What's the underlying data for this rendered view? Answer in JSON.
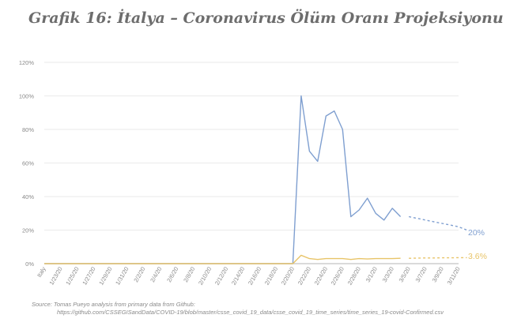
{
  "title": "Grafik 16: İtalya – Coronavirus Ölüm Oranı Projeksiyonu",
  "source": {
    "line1": "Source: Tomas Pueyo analysis from primary data from Github:",
    "line2": "https://github.com/CSSEGISandData/COVID-19/blob/master/csse_covid_19_data/csse_covid_19_time_series/time_series_19-covid-Confirmed.csv"
  },
  "colors": {
    "blue": "#7f9fd0",
    "yellow": "#e8c468",
    "grid": "#e3e3e3",
    "axis": "#b5b5b5",
    "tick_text": "#8a8a8a"
  },
  "chart_data": {
    "type": "line",
    "title": "Grafik 16: İtalya – Coronavirus Ölüm Oranı Projeksiyonu",
    "xlabel": "",
    "ylabel": "",
    "ylim": [
      0,
      120
    ],
    "yticks": [
      0,
      20,
      40,
      60,
      80,
      100,
      120
    ],
    "ytick_labels": [
      "0%",
      "20%",
      "40%",
      "60%",
      "80%",
      "100%",
      "120%"
    ],
    "grid": true,
    "categories": [
      "Italy",
      "1/22/20",
      "1/23/20",
      "1/24/20",
      "1/25/20",
      "1/26/20",
      "1/27/20",
      "1/28/20",
      "1/29/20",
      "1/30/20",
      "1/31/20",
      "2/1/20",
      "2/2/20",
      "2/3/20",
      "2/4/20",
      "2/5/20",
      "2/6/20",
      "2/7/20",
      "2/8/20",
      "2/9/20",
      "2/10/20",
      "2/11/20",
      "2/12/20",
      "2/13/20",
      "2/14/20",
      "2/15/20",
      "2/16/20",
      "2/17/20",
      "2/18/20",
      "2/19/20",
      "2/20/20",
      "2/21/20",
      "2/22/20",
      "2/23/20",
      "2/24/20",
      "2/25/20",
      "2/26/20",
      "2/27/20",
      "2/28/20",
      "2/29/20",
      "3/1/20",
      "3/2/20",
      "3/3/20",
      "3/4/20",
      "3/5/20",
      "3/6/20",
      "3/7/20",
      "3/8/20",
      "3/9/20",
      "3/10/20",
      "3/11/20"
    ],
    "shown_tick_labels": [
      "Italy",
      "1/23/20",
      "1/25/20",
      "1/27/20",
      "1/29/20",
      "1/31/20",
      "2/2/20",
      "2/4/20",
      "2/6/20",
      "2/8/20",
      "2/10/20",
      "2/12/20",
      "2/14/20",
      "2/16/20",
      "2/18/20",
      "2/20/20",
      "2/22/20",
      "2/24/20",
      "2/26/20",
      "2/28/20",
      "3/1/20",
      "3/3/20",
      "3/5/20",
      "3/7/20",
      "3/9/20",
      "3/11/20"
    ],
    "series": [
      {
        "color": "#7f9fd0",
        "end_label": "20%",
        "actual": [
          0,
          0,
          0,
          0,
          0,
          0,
          0,
          0,
          0,
          0,
          0,
          0,
          0,
          0,
          0,
          0,
          0,
          0,
          0,
          0,
          0,
          0,
          0,
          0,
          0,
          0,
          0,
          0,
          0,
          0,
          0,
          100,
          67,
          61,
          88,
          91,
          80,
          28,
          32,
          39,
          30,
          26,
          33,
          28
        ],
        "projection_start": "3/5/20",
        "projection": [
          28,
          27,
          26,
          25,
          24,
          23,
          22,
          20
        ]
      },
      {
        "color": "#e8c468",
        "end_label": "3.6%",
        "actual": [
          0,
          0,
          0,
          0,
          0,
          0,
          0,
          0,
          0,
          0,
          0,
          0,
          0,
          0,
          0,
          0,
          0,
          0,
          0,
          0,
          0,
          0,
          0,
          0,
          0,
          0,
          0,
          0,
          0,
          0,
          0,
          5,
          3,
          2.5,
          3,
          3,
          3,
          2.5,
          3,
          2.8,
          3,
          3,
          3,
          3.2
        ],
        "projection_start": "3/5/20",
        "projection": [
          3.2,
          3.3,
          3.4,
          3.4,
          3.5,
          3.5,
          3.6,
          3.6
        ]
      }
    ]
  }
}
